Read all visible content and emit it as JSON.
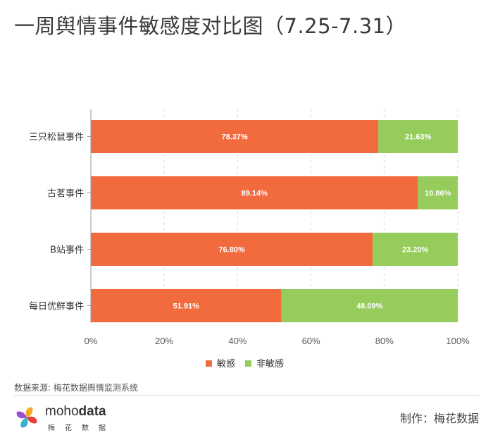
{
  "chart_data": {
    "type": "bar",
    "orientation": "horizontal",
    "stacked": true,
    "title": "一周舆情事件敏感度对比图（7.25-7.31）",
    "categories": [
      "三只松鼠事件",
      "古茗事件",
      "B站事件",
      "每日优鲜事件"
    ],
    "series": [
      {
        "name": "敏感",
        "color": "#f26b3f",
        "values": [
          78.37,
          89.14,
          76.8,
          51.91
        ],
        "labels": [
          "78.37%",
          "89.14%",
          "76.80%",
          "51.91%"
        ]
      },
      {
        "name": "非敏感",
        "color": "#95cc5c",
        "values": [
          21.63,
          10.86,
          23.2,
          48.09
        ],
        "labels": [
          "21.63%",
          "10.86%",
          "23.20%",
          "48.09%"
        ]
      }
    ],
    "xlim": [
      0,
      100
    ],
    "x_ticks": [
      "0%",
      "20%",
      "40%",
      "60%",
      "80%",
      "100%"
    ],
    "x_tick_values": [
      0,
      20,
      40,
      60,
      80,
      100
    ],
    "grid": "vertical-dashed",
    "legend_position": "bottom"
  },
  "footer": {
    "source": "数据来源: 梅花数据舆情监测系统",
    "credit": "制作：梅花数据",
    "logo_text_light": "moho",
    "logo_text_bold": "data",
    "logo_text_cn": "梅花数据"
  }
}
